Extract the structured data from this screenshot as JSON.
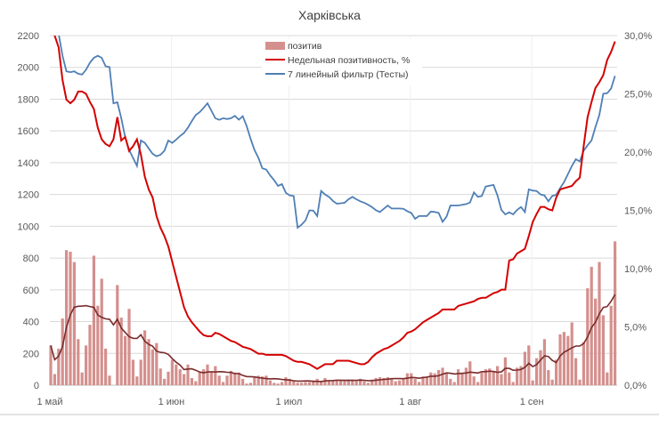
{
  "chart_data": {
    "type": "bar+line",
    "title": "Харківська",
    "x_ticks": [
      "1 май",
      "1 июн",
      "1 июл",
      "1 авг",
      "1 сен"
    ],
    "x_tick_days": [
      0,
      31,
      61,
      92,
      123
    ],
    "y_left": {
      "ticks": [
        "0",
        "200",
        "400",
        "600",
        "800",
        "1000",
        "1200",
        "1400",
        "1600",
        "1800",
        "2000",
        "2200"
      ],
      "range": [
        0,
        2200
      ]
    },
    "y_right": {
      "ticks": [
        "0,0%",
        "5,0%",
        "10,0%",
        "15,0%",
        "20,0%",
        "25,0%",
        "30,0%"
      ],
      "range": [
        0,
        30
      ]
    },
    "grid": "horizontal major + vertical at month ticks",
    "legend_position": "top-center",
    "legend": [
      "позитив",
      "Недельная позитивность, %",
      "7 линейный фильтр (Тесты)"
    ],
    "series": [
      {
        "name": "позитив",
        "type": "bar",
        "axis": "left",
        "color": "#d4908d",
        "values": [
          250,
          70,
          230,
          420,
          850,
          840,
          775,
          290,
          80,
          250,
          380,
          815,
          500,
          670,
          230,
          60,
          0,
          630,
          425,
          310,
          480,
          160,
          55,
          160,
          345,
          290,
          225,
          265,
          105,
          40,
          85,
          160,
          130,
          100,
          70,
          130,
          45,
          25,
          80,
          100,
          130,
          80,
          120,
          60,
          20,
          60,
          90,
          80,
          80,
          40,
          10,
          15,
          50,
          60,
          55,
          60,
          30,
          15,
          10,
          20,
          50,
          40,
          30,
          15,
          15,
          20,
          20,
          30,
          40,
          20,
          45,
          25,
          25,
          35,
          30,
          30,
          30,
          35,
          25,
          40,
          25,
          15,
          35,
          45,
          50,
          45,
          50,
          45,
          25,
          30,
          40,
          75,
          75,
          40,
          20,
          55,
          50,
          80,
          75,
          95,
          110,
          75,
          40,
          20,
          100,
          80,
          110,
          150,
          55,
          20,
          80,
          100,
          105,
          90,
          120,
          70,
          175,
          80,
          20,
          110,
          120,
          210,
          250,
          30,
          170,
          220,
          290,
          95,
          35,
          160,
          320,
          335,
          310,
          395,
          170,
          35,
          270,
          610,
          745,
          545,
          775,
          440,
          80,
          500,
          905
        ]
      },
      {
        "name": "Недельная позитивность, %",
        "type": "line",
        "axis": "right",
        "color": "#d40000",
        "values": [
          30.7,
          30.0,
          29.0,
          26.2,
          24.5,
          24.2,
          24.5,
          25.2,
          25.2,
          25.0,
          24.3,
          23.7,
          22.1,
          21.1,
          20.7,
          20.5,
          21.1,
          23.0,
          21.0,
          21.3,
          20.1,
          20.5,
          21.1,
          19.8,
          17.9,
          16.8,
          16.1,
          14.5,
          13.5,
          12.8,
          11.9,
          10.6,
          9.3,
          8.0,
          6.7,
          5.9,
          5.4,
          5.0,
          4.6,
          4.3,
          4.2,
          4.2,
          4.5,
          4.4,
          4.2,
          4.0,
          3.8,
          3.7,
          3.5,
          3.3,
          3.2,
          3.1,
          2.9,
          2.7,
          2.7,
          2.6,
          2.6,
          2.6,
          2.6,
          2.6,
          2.5,
          2.3,
          2.1,
          2.0,
          2.0,
          1.9,
          1.8,
          1.6,
          1.4,
          1.6,
          1.8,
          1.8,
          1.8,
          2.1,
          2.1,
          2.1,
          2.1,
          2.0,
          1.9,
          1.8,
          1.8,
          2.0,
          2.4,
          2.7,
          2.9,
          3.1,
          3.2,
          3.4,
          3.6,
          3.8,
          4.1,
          4.5,
          4.6,
          4.8,
          5.1,
          5.4,
          5.6,
          5.8,
          6.0,
          6.2,
          6.5,
          6.5,
          6.5,
          6.5,
          6.8,
          6.9,
          7.0,
          7.1,
          7.2,
          7.4,
          7.5,
          7.5,
          7.7,
          7.9,
          8.0,
          8.2,
          8.2,
          10.7,
          10.8,
          11.3,
          11.5,
          11.7,
          12.8,
          14.0,
          14.7,
          15.3,
          15.3,
          15.1,
          15.0,
          16.1,
          16.8,
          16.9,
          17.0,
          17.1,
          17.5,
          17.8,
          20.5,
          23.0,
          24.3,
          25.5,
          26.0,
          26.6,
          27.9,
          28.6,
          29.5
        ]
      },
      {
        "name": "7 линейный фильтр (Тесты)",
        "type": "line",
        "axis": "left",
        "color": "#4f7fb5",
        "values": [
          2400,
          2300,
          2213,
          2073,
          1975,
          1970,
          1975,
          1960,
          1955,
          1985,
          2030,
          2060,
          2073,
          2060,
          2007,
          2002,
          1774,
          1780,
          1680,
          1560,
          1480,
          1430,
          1380,
          1540,
          1525,
          1490,
          1456,
          1441,
          1450,
          1475,
          1540,
          1525,
          1545,
          1568,
          1587,
          1620,
          1662,
          1700,
          1718,
          1745,
          1774,
          1727,
          1680,
          1670,
          1680,
          1675,
          1680,
          1695,
          1671,
          1693,
          1630,
          1550,
          1480,
          1430,
          1365,
          1357,
          1320,
          1290,
          1254,
          1265,
          1210,
          1194,
          1190,
          991,
          1010,
          1037,
          1100,
          1099,
          1065,
          1222,
          1200,
          1185,
          1160,
          1142,
          1145,
          1148,
          1170,
          1185,
          1170,
          1157,
          1148,
          1135,
          1120,
          1101,
          1090,
          1110,
          1131,
          1112,
          1112,
          1112,
          1110,
          1095,
          1084,
          1047,
          1065,
          1065,
          1065,
          1093,
          1090,
          1084,
          1028,
          1060,
          1131,
          1131,
          1131,
          1135,
          1140,
          1150,
          1213,
          1185,
          1190,
          1250,
          1255,
          1260,
          1194,
          1103,
          1075,
          1088,
          1075,
          1103,
          1121,
          1090,
          1232,
          1225,
          1222,
          1200,
          1194,
          1157,
          1191,
          1198,
          1240,
          1278,
          1329,
          1380,
          1422,
          1408,
          1475,
          1510,
          1540,
          1624,
          1700,
          1834,
          1837,
          1867,
          1946
        ]
      },
      {
        "type": "moving-average trendline of позитив",
        "axis": "left",
        "color": "#7a2b2b",
        "period": 7
      }
    ]
  }
}
